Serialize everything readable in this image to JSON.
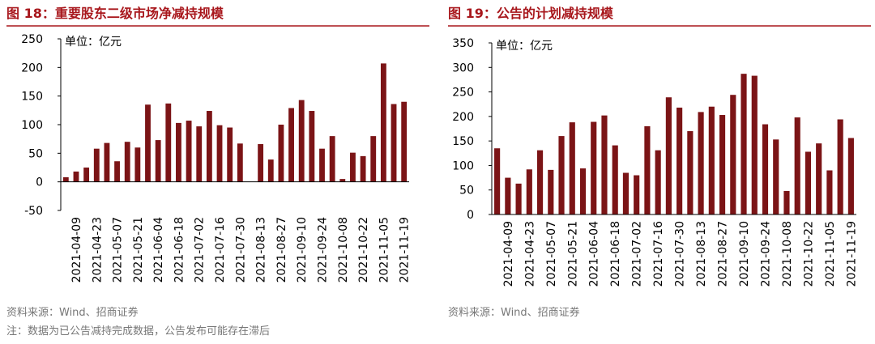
{
  "chart_data": [
    {
      "type": "bar",
      "title": "图 18：重要股东二级市场净减持规模",
      "annotation": "单位：亿元",
      "categories": [
        null,
        "2021-04-09",
        null,
        "2021-04-23",
        null,
        "2021-05-07",
        null,
        "2021-05-21",
        null,
        "2021-06-04",
        null,
        "2021-06-18",
        null,
        "2021-07-02",
        null,
        "2021-07-16",
        null,
        "2021-07-30",
        null,
        "2021-08-13",
        null,
        "2021-08-27",
        null,
        "2021-09-10",
        null,
        "2021-09-24",
        null,
        "2021-10-08",
        null,
        "2021-10-22",
        null,
        "2021-11-05",
        null,
        "2021-11-19"
      ],
      "values": [
        8,
        18,
        25,
        58,
        68,
        36,
        70,
        60,
        135,
        73,
        137,
        103,
        107,
        97,
        124,
        99,
        95,
        67,
        0,
        66,
        39,
        100,
        129,
        143,
        124,
        58,
        80,
        5,
        51,
        45,
        80,
        207,
        136,
        140
      ],
      "color": "#7b1416",
      "ylim": [
        -50,
        250
      ],
      "yticks": [
        -50,
        0,
        50,
        100,
        150,
        200,
        250
      ],
      "source": "资料来源：Wind、招商证券",
      "note": "注：数据为已公告减持完成数据，公告发布可能存在滞后"
    },
    {
      "type": "bar",
      "title": "图 19：公告的计划减持规模",
      "annotation": "单位：亿元",
      "categories": [
        null,
        "2021-04-09",
        null,
        "2021-04-23",
        null,
        "2021-05-07",
        null,
        "2021-05-21",
        null,
        "2021-06-04",
        null,
        "2021-06-18",
        null,
        "2021-07-02",
        null,
        "2021-07-16",
        null,
        "2021-07-30",
        null,
        "2021-08-13",
        null,
        "2021-08-27",
        null,
        "2021-09-10",
        null,
        "2021-09-24",
        null,
        "2021-10-08",
        null,
        "2021-10-22",
        null,
        "2021-11-05",
        null,
        "2021-11-19"
      ],
      "values": [
        135,
        75,
        63,
        92,
        131,
        91,
        160,
        188,
        94,
        189,
        202,
        141,
        85,
        80,
        180,
        131,
        239,
        218,
        170,
        209,
        220,
        203,
        244,
        287,
        283,
        184,
        153,
        48,
        198,
        128,
        145,
        90,
        194,
        156
      ],
      "color": "#7b1416",
      "ylim": [
        0,
        350
      ],
      "yticks": [
        0,
        50,
        100,
        150,
        200,
        250,
        300,
        350
      ],
      "source": "资料来源：Wind、招商证券"
    }
  ]
}
